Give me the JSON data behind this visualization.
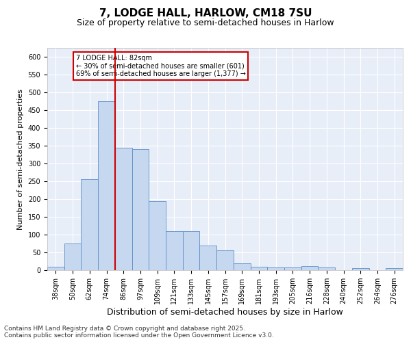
{
  "title1": "7, LODGE HALL, HARLOW, CM18 7SU",
  "title2": "Size of property relative to semi-detached houses in Harlow",
  "xlabel": "Distribution of semi-detached houses by size in Harlow",
  "ylabel": "Number of semi-detached properties",
  "categories": [
    "38sqm",
    "50sqm",
    "62sqm",
    "74sqm",
    "86sqm",
    "97sqm",
    "109sqm",
    "121sqm",
    "133sqm",
    "145sqm",
    "157sqm",
    "169sqm",
    "181sqm",
    "193sqm",
    "205sqm",
    "216sqm",
    "228sqm",
    "240sqm",
    "252sqm",
    "264sqm",
    "276sqm"
  ],
  "values": [
    10,
    75,
    255,
    475,
    345,
    340,
    195,
    110,
    110,
    70,
    55,
    20,
    10,
    8,
    8,
    12,
    8,
    0,
    5,
    0,
    5
  ],
  "bar_color": "#c5d8f0",
  "bar_edge_color": "#5b8cc8",
  "vline_x": 3.5,
  "vline_color": "#cc0000",
  "annotation_text": "7 LODGE HALL: 82sqm\n← 30% of semi-detached houses are smaller (601)\n69% of semi-detached houses are larger (1,377) →",
  "annotation_box_color": "#cc0000",
  "ylim": [
    0,
    625
  ],
  "yticks": [
    0,
    50,
    100,
    150,
    200,
    250,
    300,
    350,
    400,
    450,
    500,
    550,
    600
  ],
  "background_color": "#e8eef8",
  "footer": "Contains HM Land Registry data © Crown copyright and database right 2025.\nContains public sector information licensed under the Open Government Licence v3.0.",
  "title1_fontsize": 11,
  "title2_fontsize": 9,
  "xlabel_fontsize": 9,
  "ylabel_fontsize": 8,
  "tick_fontsize": 7,
  "footer_fontsize": 6.5
}
